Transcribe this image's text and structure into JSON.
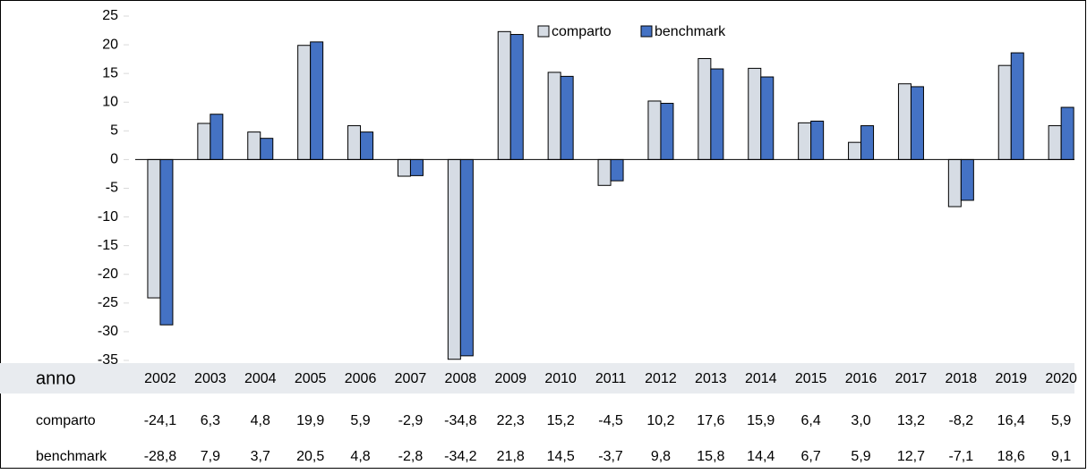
{
  "chart_data": {
    "type": "bar",
    "x_label": "anno",
    "categories": [
      "2002",
      "2003",
      "2004",
      "2005",
      "2006",
      "2007",
      "2008",
      "2009",
      "2010",
      "2011",
      "2012",
      "2013",
      "2014",
      "2015",
      "2016",
      "2017",
      "2018",
      "2019",
      "2020"
    ],
    "series": [
      {
        "name": "comparto",
        "color": "#d6dce4",
        "values": [
          -24.1,
          6.3,
          4.8,
          19.9,
          5.9,
          -2.9,
          -34.8,
          22.3,
          15.2,
          -4.5,
          10.2,
          17.6,
          15.9,
          6.4,
          3.0,
          13.2,
          -8.2,
          16.4,
          5.9
        ],
        "value_labels": [
          "-24,1",
          "6,3",
          "4,8",
          "19,9",
          "5,9",
          "-2,9",
          "-34,8",
          "22,3",
          "15,2",
          "-4,5",
          "10,2",
          "17,6",
          "15,9",
          "6,4",
          "3,0",
          "13,2",
          "-8,2",
          "16,4",
          "5,9"
        ]
      },
      {
        "name": "benchmark",
        "color": "#4472c4",
        "values": [
          -28.8,
          7.9,
          3.7,
          20.5,
          4.8,
          -2.8,
          -34.2,
          21.8,
          14.5,
          -3.7,
          9.8,
          15.8,
          14.4,
          6.7,
          5.9,
          12.7,
          -7.1,
          18.6,
          9.1
        ],
        "value_labels": [
          "-28,8",
          "7,9",
          "3,7",
          "20,5",
          "4,8",
          "-2,8",
          "-34,2",
          "21,8",
          "14,5",
          "-3,7",
          "9,8",
          "15,8",
          "14,4",
          "6,7",
          "5,9",
          "12,7",
          "-7,1",
          "18,6",
          "9,1"
        ]
      }
    ],
    "ylim": [
      -35,
      25
    ],
    "yticks": [
      25,
      20,
      15,
      10,
      5,
      0,
      -5,
      -10,
      -15,
      -20,
      -25,
      -30,
      -35
    ]
  }
}
